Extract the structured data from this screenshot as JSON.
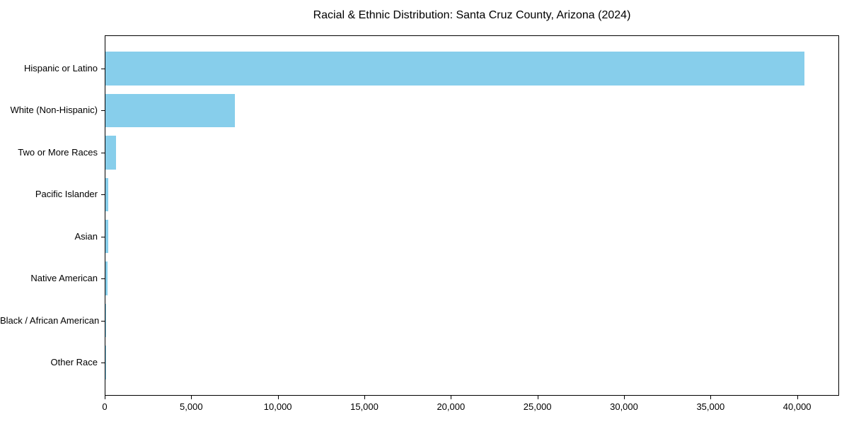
{
  "page": {
    "background_color": "#ffffff",
    "text_color": "#000000"
  },
  "chart_data": {
    "type": "bar",
    "orientation": "horizontal",
    "title": "Racial & Ethnic Distribution: Santa Cruz County, Arizona (2024)",
    "xlabel": "",
    "ylabel": "",
    "categories": [
      "Hispanic or Latino",
      "White (Non-Hispanic)",
      "Two or More Races",
      "Pacific Islander",
      "Asian",
      "Native American",
      "Black / African American",
      "Other Race"
    ],
    "values": [
      40400,
      7480,
      630,
      170,
      150,
      120,
      40,
      15
    ],
    "bar_color": "#87CEEB",
    "xlim": [
      0,
      42425
    ],
    "xticks": [
      0,
      5000,
      10000,
      15000,
      20000,
      25000,
      30000,
      35000,
      40000
    ],
    "xtick_labels": [
      "0",
      "5,000",
      "10,000",
      "15,000",
      "20,000",
      "25,000",
      "30,000",
      "35,000",
      "40,000"
    ],
    "grid": false,
    "legend": null,
    "spine_color": "#000000"
  }
}
